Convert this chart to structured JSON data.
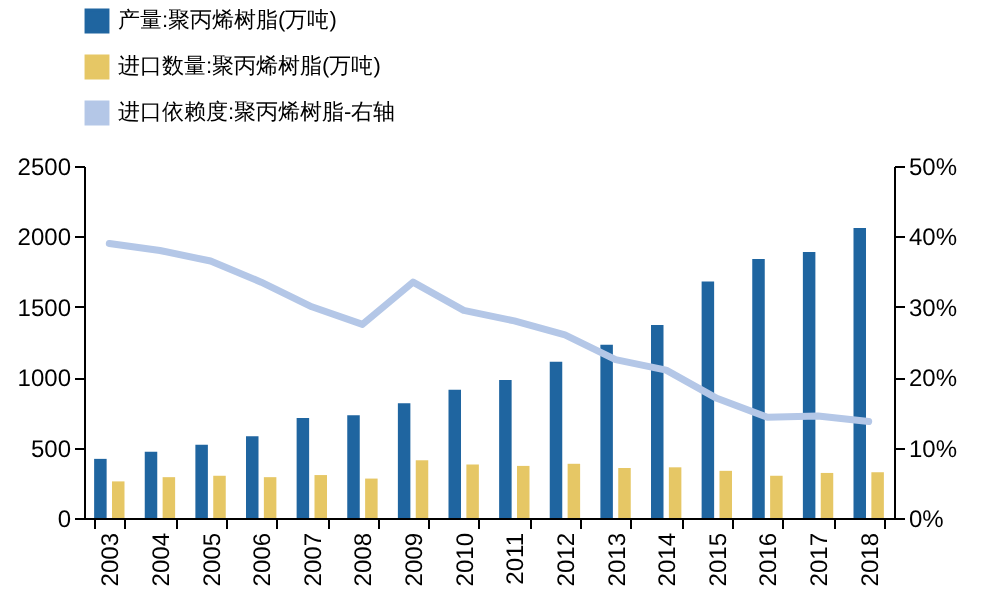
{
  "chart_data": {
    "type": "bar",
    "categories": [
      "2003",
      "2004",
      "2005",
      "2006",
      "2007",
      "2008",
      "2009",
      "2010",
      "2011",
      "2012",
      "2013",
      "2014",
      "2015",
      "2016",
      "2017",
      "2018"
    ],
    "series": [
      {
        "name": "产量:聚丙烯树脂(万吨)",
        "color": "#1f65a0",
        "values": [
          420,
          470,
          520,
          580,
          710,
          730,
          815,
          910,
          980,
          1110,
          1230,
          1370,
          1680,
          1840,
          1890,
          2060
        ]
      },
      {
        "name": "进口数量:聚丙烯树脂(万吨)",
        "color": "#e6c765",
        "values": [
          260,
          290,
          300,
          290,
          305,
          280,
          410,
          380,
          370,
          385,
          355,
          360,
          335,
          300,
          320,
          325
        ]
      },
      {
        "name": "进口依赖度:聚丙烯树脂-右轴",
        "color": "#b4c7e7",
        "type": "line",
        "axis": "y2",
        "values": [
          39,
          38,
          36.5,
          33.5,
          30,
          27.5,
          33.5,
          29.5,
          28,
          26,
          22.5,
          21,
          17,
          14.3,
          14.5,
          13.7
        ]
      }
    ],
    "ylim": [
      0,
      2500
    ],
    "yticks": [
      0,
      500,
      1000,
      1500,
      2000,
      2500
    ],
    "y2lim": [
      0,
      50
    ],
    "y2ticks": [
      {
        "value": 0,
        "label": "0%"
      },
      {
        "value": 10,
        "label": "10%"
      },
      {
        "value": 20,
        "label": "20%"
      },
      {
        "value": 30,
        "label": "30%"
      },
      {
        "value": 40,
        "label": "40%"
      },
      {
        "value": 50,
        "label": "50%"
      }
    ],
    "grid": false,
    "legend": "top",
    "marker": "none",
    "line_style": "solid"
  }
}
